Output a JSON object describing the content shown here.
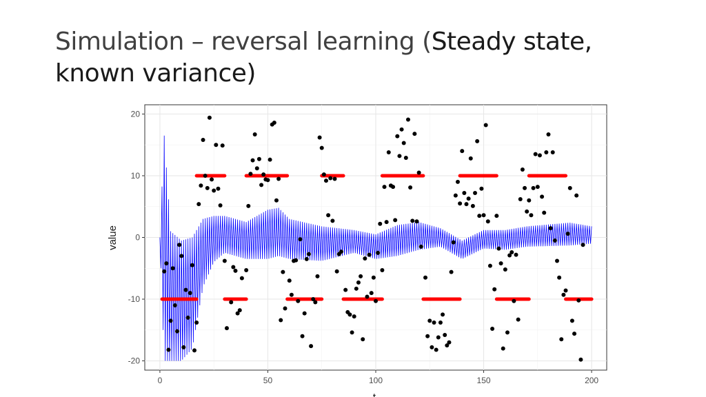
{
  "slide": {
    "title_part1": "Simulation – reversal learning (",
    "title_part2": "Steady state,",
    "title_part3": "known variance)"
  },
  "chart_data": {
    "type": "scatter",
    "ylabel": "value",
    "xlabel": "t",
    "xlim": [
      -7,
      207
    ],
    "ylim": [
      -21.5,
      21.5
    ],
    "x_ticks": [
      0,
      50,
      100,
      150,
      200
    ],
    "y_ticks": [
      -20,
      -10,
      0,
      10,
      20
    ],
    "grid": true,
    "colors": {
      "mean": "#ff0000",
      "points": "#000000",
      "estimate": "#0000ff"
    },
    "mean_segments": [
      {
        "x0": 1,
        "x1": 17,
        "y": -10
      },
      {
        "x0": 17,
        "x1": 30,
        "y": 10
      },
      {
        "x0": 30,
        "x1": 40,
        "y": -10
      },
      {
        "x0": 40,
        "x1": 59,
        "y": 10
      },
      {
        "x0": 59,
        "x1": 75,
        "y": -10
      },
      {
        "x0": 75,
        "x1": 85,
        "y": 10
      },
      {
        "x0": 85,
        "x1": 103,
        "y": -10
      },
      {
        "x0": 103,
        "x1": 122,
        "y": 10
      },
      {
        "x0": 122,
        "x1": 139,
        "y": -10
      },
      {
        "x0": 139,
        "x1": 156,
        "y": 10
      },
      {
        "x0": 156,
        "x1": 171,
        "y": -10
      },
      {
        "x0": 171,
        "x1": 188,
        "y": 10
      },
      {
        "x0": 188,
        "x1": 200,
        "y": -10
      }
    ],
    "points": [
      [
        2,
        -5.5
      ],
      [
        3,
        -4.2
      ],
      [
        4,
        -18.2
      ],
      [
        5,
        -13.5
      ],
      [
        6,
        -5
      ],
      [
        7,
        -11
      ],
      [
        8,
        -15.2
      ],
      [
        9,
        -1.2
      ],
      [
        10,
        -3
      ],
      [
        11,
        -17.8
      ],
      [
        12,
        -8.5
      ],
      [
        13,
        -13
      ],
      [
        14,
        -9
      ],
      [
        15,
        -4.5
      ],
      [
        16,
        -18.3
      ],
      [
        17,
        -13.8
      ],
      [
        18,
        5.4
      ],
      [
        19,
        8.4
      ],
      [
        20,
        15.8
      ],
      [
        21,
        10
      ],
      [
        22,
        8
      ],
      [
        23,
        19.4
      ],
      [
        24,
        9.4
      ],
      [
        25,
        7.6
      ],
      [
        26,
        15
      ],
      [
        27,
        7.9
      ],
      [
        28,
        5.2
      ],
      [
        29,
        14.9
      ],
      [
        30,
        -3.8
      ],
      [
        31,
        -14.7
      ],
      [
        33,
        -10.5
      ],
      [
        34,
        -4.8
      ],
      [
        35,
        -5.4
      ],
      [
        36,
        -12.3
      ],
      [
        37,
        -11.8
      ],
      [
        38,
        -6.6
      ],
      [
        40,
        -5.3
      ],
      [
        41,
        5.1
      ],
      [
        42,
        10.3
      ],
      [
        43,
        12.5
      ],
      [
        44,
        16.7
      ],
      [
        45,
        11.2
      ],
      [
        46,
        12.7
      ],
      [
        47,
        8.5
      ],
      [
        48,
        10.2
      ],
      [
        49,
        9.4
      ],
      [
        50,
        9.3
      ],
      [
        51,
        12.6
      ],
      [
        52,
        18.3
      ],
      [
        53,
        18.6
      ],
      [
        54,
        6
      ],
      [
        55,
        9.5
      ],
      [
        56,
        -13.4
      ],
      [
        57,
        -5.6
      ],
      [
        58,
        -11.5
      ],
      [
        60,
        -7
      ],
      [
        61,
        -9.3
      ],
      [
        62,
        -3.8
      ],
      [
        63,
        -3.7
      ],
      [
        64,
        -10.3
      ],
      [
        65,
        -0.3
      ],
      [
        66,
        -16
      ],
      [
        67,
        -12.3
      ],
      [
        68,
        -3.5
      ],
      [
        69,
        -2.7
      ],
      [
        70,
        -17.6
      ],
      [
        71,
        -10
      ],
      [
        72,
        -10.5
      ],
      [
        73,
        -6.3
      ],
      [
        74,
        16.2
      ],
      [
        75,
        14.5
      ],
      [
        76,
        10.2
      ],
      [
        77,
        9.2
      ],
      [
        78,
        3.6
      ],
      [
        79,
        9.6
      ],
      [
        80,
        2.7
      ],
      [
        81,
        9.5
      ],
      [
        82,
        -5.5
      ],
      [
        83,
        -2.7
      ],
      [
        84,
        -2.3
      ],
      [
        86,
        -8.5
      ],
      [
        87,
        -12.1
      ],
      [
        88,
        -12.5
      ],
      [
        89,
        -15.4
      ],
      [
        90,
        -12.8
      ],
      [
        91,
        -8.3
      ],
      [
        92,
        -7.3
      ],
      [
        93,
        -6.3
      ],
      [
        94,
        -16.5
      ],
      [
        95,
        -3.4
      ],
      [
        96,
        -9.6
      ],
      [
        97,
        -2.8
      ],
      [
        98,
        -9
      ],
      [
        99,
        -6.5
      ],
      [
        100,
        -10.3
      ],
      [
        101,
        -2.5
      ],
      [
        102,
        2.2
      ],
      [
        103,
        -5.3
      ],
      [
        104,
        8.2
      ],
      [
        105,
        2.5
      ],
      [
        106,
        13.8
      ],
      [
        107,
        8.4
      ],
      [
        108,
        8.2
      ],
      [
        109,
        2.8
      ],
      [
        110,
        16.4
      ],
      [
        111,
        13.2
      ],
      [
        112,
        17.5
      ],
      [
        113,
        15.3
      ],
      [
        114,
        12.9
      ],
      [
        115,
        19.1
      ],
      [
        116,
        8.1
      ],
      [
        117,
        2.7
      ],
      [
        118,
        16.8
      ],
      [
        119,
        2.6
      ],
      [
        120,
        10.5
      ],
      [
        121,
        -1.5
      ],
      [
        123,
        -6.5
      ],
      [
        124,
        -16
      ],
      [
        125,
        -13.5
      ],
      [
        126,
        -17.8
      ],
      [
        127,
        -13.8
      ],
      [
        128,
        -18.2
      ],
      [
        129,
        -16.2
      ],
      [
        130,
        -13.8
      ],
      [
        131,
        -12.5
      ],
      [
        132,
        -15.8
      ],
      [
        133,
        -17.5
      ],
      [
        134,
        -17
      ],
      [
        135,
        -5.6
      ],
      [
        136,
        -0.8
      ],
      [
        137,
        6.8
      ],
      [
        138,
        9
      ],
      [
        139,
        5.5
      ],
      [
        140,
        14
      ],
      [
        141,
        7.2
      ],
      [
        142,
        5.4
      ],
      [
        143,
        6.3
      ],
      [
        144,
        12.8
      ],
      [
        145,
        5.1
      ],
      [
        146,
        7.2
      ],
      [
        147,
        15.6
      ],
      [
        148,
        3.5
      ],
      [
        149,
        7.9
      ],
      [
        150,
        3.6
      ],
      [
        151,
        18.2
      ],
      [
        152,
        2.6
      ],
      [
        153,
        -4.6
      ],
      [
        154,
        -14.8
      ],
      [
        155,
        -8.4
      ],
      [
        156,
        3.5
      ],
      [
        157,
        -1.8
      ],
      [
        158,
        -4.2
      ],
      [
        159,
        -18
      ],
      [
        160,
        -5.2
      ],
      [
        161,
        -15.4
      ],
      [
        162,
        -2.9
      ],
      [
        163,
        -2.4
      ],
      [
        164,
        -10.3
      ],
      [
        165,
        -2.8
      ],
      [
        166,
        -13.3
      ],
      [
        167,
        6.2
      ],
      [
        168,
        11
      ],
      [
        169,
        8
      ],
      [
        170,
        4.2
      ],
      [
        171,
        6
      ],
      [
        172,
        3.6
      ],
      [
        173,
        8
      ],
      [
        174,
        13.5
      ],
      [
        175,
        8.2
      ],
      [
        176,
        13.3
      ],
      [
        177,
        6.6
      ],
      [
        178,
        4
      ],
      [
        179,
        13.8
      ],
      [
        180,
        16.7
      ],
      [
        181,
        1.5
      ],
      [
        182,
        13.8
      ],
      [
        183,
        -0.5
      ],
      [
        184,
        -3.8
      ],
      [
        185,
        -6.5
      ],
      [
        186,
        -16.5
      ],
      [
        187,
        -9.3
      ],
      [
        188,
        -8.6
      ],
      [
        189,
        0.6
      ],
      [
        190,
        8
      ],
      [
        191,
        -13.5
      ],
      [
        192,
        -15.6
      ],
      [
        193,
        6.8
      ],
      [
        194,
        -10.2
      ],
      [
        195,
        -19.8
      ],
      [
        196,
        -1.2
      ]
    ],
    "estimate_envelope": [
      [
        0,
        0,
        0
      ],
      [
        2,
        -20,
        16.5
      ],
      [
        5,
        -20,
        1
      ],
      [
        10,
        -20,
        -0.5
      ],
      [
        15,
        -18,
        0
      ],
      [
        20,
        -8,
        3
      ],
      [
        25,
        -4,
        3.5
      ],
      [
        30,
        -2.5,
        3.5
      ],
      [
        40,
        -3.5,
        2.5
      ],
      [
        50,
        -3.5,
        4.5
      ],
      [
        55,
        -3,
        4.8
      ],
      [
        60,
        -3.5,
        3
      ],
      [
        75,
        -3.8,
        1.8
      ],
      [
        90,
        -2.5,
        1.2
      ],
      [
        100,
        -3.5,
        0.5
      ],
      [
        110,
        -3,
        2
      ],
      [
        120,
        -2,
        2.5
      ],
      [
        130,
        -1.5,
        1.5
      ],
      [
        140,
        -3.5,
        -0.5
      ],
      [
        150,
        -1.8,
        1.2
      ],
      [
        160,
        -2,
        1.2
      ],
      [
        170,
        -1.5,
        1.8
      ],
      [
        180,
        -1.4,
        2.1
      ],
      [
        190,
        -1.3,
        2.4
      ],
      [
        200,
        -1,
        1.8
      ]
    ]
  }
}
